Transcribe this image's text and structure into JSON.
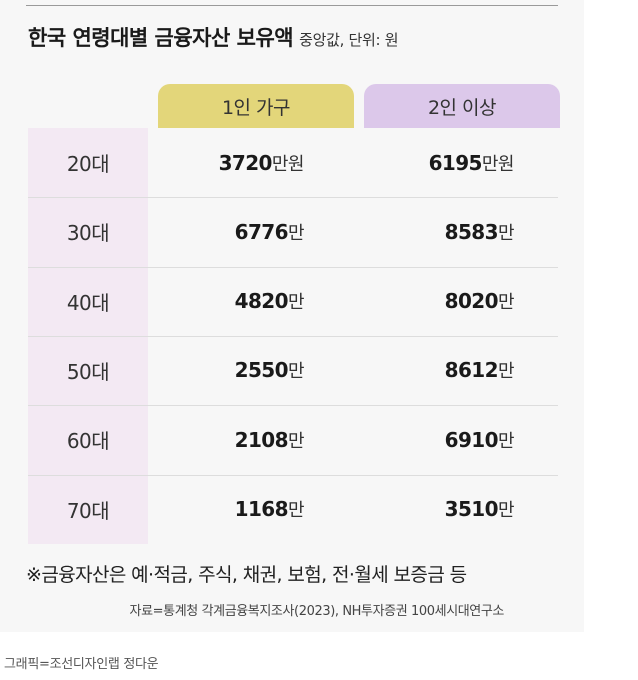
{
  "title": "한국 연령대별 금융자산 보유액",
  "subtitle": "중앙값, 단위: 원",
  "chart_data": {
    "type": "table",
    "title": "한국 연령대별 금융자산 보유액",
    "subtitle": "중앙값, 단위: 원",
    "columns": [
      "1인 가구",
      "2인 이상"
    ],
    "rows": [
      {
        "age": "20대",
        "v1": "3720",
        "u1": "만원",
        "v2": "6195",
        "u2": "만원"
      },
      {
        "age": "30대",
        "v1": "6776",
        "u1": "만",
        "v2": "8583",
        "u2": "만"
      },
      {
        "age": "40대",
        "v1": "4820",
        "u1": "만",
        "v2": "8020",
        "u2": "만"
      },
      {
        "age": "50대",
        "v1": "2550",
        "u1": "만",
        "v2": "8612",
        "u2": "만"
      },
      {
        "age": "60대",
        "v1": "2108",
        "u1": "만",
        "v2": "6910",
        "u2": "만"
      },
      {
        "age": "70대",
        "v1": "1168",
        "u1": "만",
        "v2": "3510",
        "u2": "만"
      }
    ]
  },
  "note": "※금융자산은 예·적금, 주식, 채권, 보험, 전·월세 보증금 등",
  "source": "자료=통계청 각계금융복지조사(2023), NH투자증권 100세시대연구소",
  "credit": "그래픽=조선디자인랩 정다운",
  "colors": {
    "header_1": "#e3d67a",
    "header_2": "#dcc8ea",
    "age_column": "#f3e9f3",
    "card": "#f7f7f7"
  }
}
